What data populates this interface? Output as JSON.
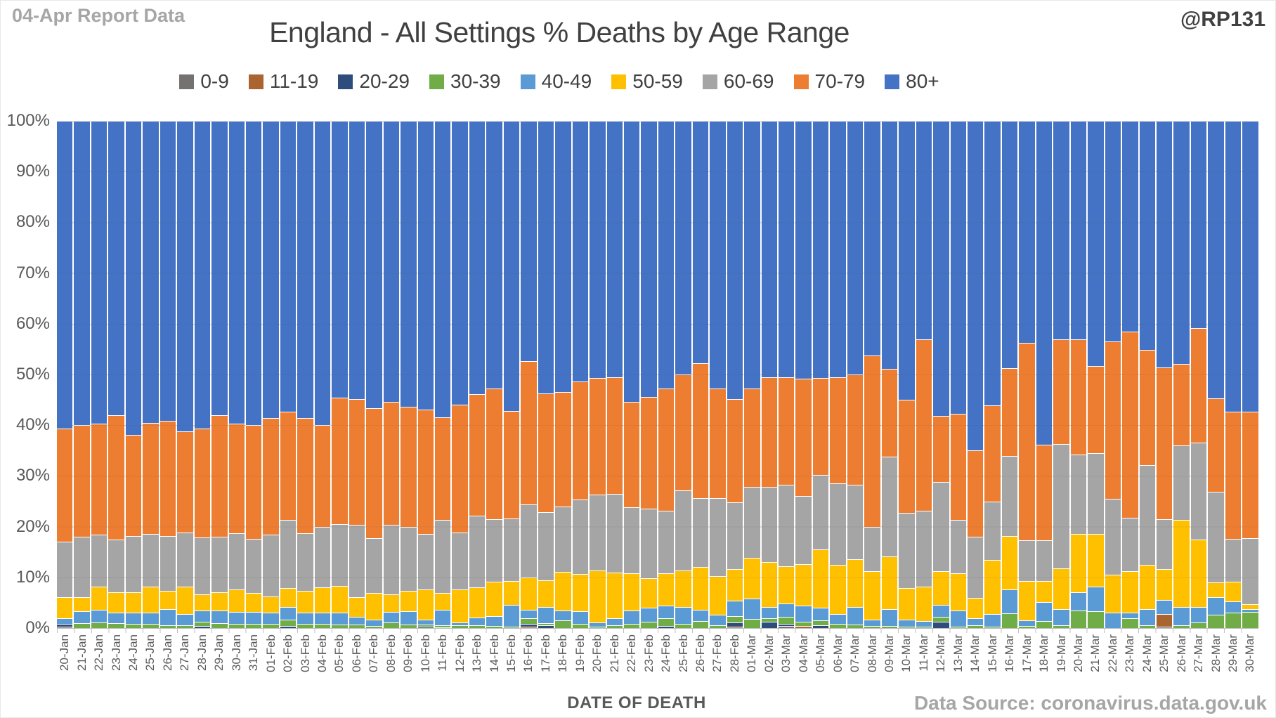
{
  "header": {
    "report_label": "04-Apr Report Data",
    "handle": "@RP131",
    "title": "England - All Settings % Deaths by Age Range"
  },
  "footer": {
    "x_axis_title": "DATE OF DEATH",
    "source": "Data Source: coronavirus.data.gov.uk"
  },
  "chart_data": {
    "type": "bar",
    "stacked": true,
    "normalized_to_percent": true,
    "title": "England - All Settings % Deaths by Age Range",
    "xlabel": "DATE OF DEATH",
    "ylabel": "",
    "ylim": [
      0,
      100
    ],
    "grid": true,
    "legend_position": "top",
    "yticks": [
      "0%",
      "10%",
      "20%",
      "30%",
      "40%",
      "50%",
      "60%",
      "70%",
      "80%",
      "90%",
      "100%"
    ],
    "categories": [
      "20-Jan",
      "21-Jan",
      "22-Jan",
      "23-Jan",
      "24-Jan",
      "25-Jan",
      "26-Jan",
      "27-Jan",
      "28-Jan",
      "29-Jan",
      "30-Jan",
      "31-Jan",
      "01-Feb",
      "02-Feb",
      "03-Feb",
      "04-Feb",
      "05-Feb",
      "06-Feb",
      "07-Feb",
      "08-Feb",
      "09-Feb",
      "10-Feb",
      "11-Feb",
      "12-Feb",
      "13-Feb",
      "14-Feb",
      "15-Feb",
      "16-Feb",
      "17-Feb",
      "18-Feb",
      "19-Feb",
      "20-Feb",
      "21-Feb",
      "22-Feb",
      "23-Feb",
      "24-Feb",
      "25-Feb",
      "26-Feb",
      "27-Feb",
      "28-Feb",
      "01-Mar",
      "02-Mar",
      "03-Mar",
      "04-Mar",
      "05-Mar",
      "06-Mar",
      "07-Mar",
      "08-Mar",
      "09-Mar",
      "10-Mar",
      "11-Mar",
      "12-Mar",
      "13-Mar",
      "14-Mar",
      "15-Mar",
      "16-Mar",
      "17-Mar",
      "18-Mar",
      "19-Mar",
      "20-Mar",
      "21-Mar",
      "22-Mar",
      "23-Mar",
      "24-Mar",
      "25-Mar",
      "26-Mar",
      "27-Mar",
      "28-Mar",
      "29-Mar",
      "30-Mar"
    ],
    "series": [
      {
        "name": "0-9",
        "color": "#767171",
        "values": [
          0.3,
          0,
          0,
          0,
          0,
          0,
          0,
          0,
          0,
          0,
          0,
          0,
          0,
          0,
          0,
          0,
          0,
          0,
          0,
          0,
          0,
          0,
          0.2,
          0,
          0,
          0,
          0,
          0,
          0,
          0,
          0,
          0,
          0,
          0,
          0,
          0,
          0,
          0,
          0,
          0,
          0,
          0,
          0.4,
          0,
          0,
          0,
          0,
          0,
          0,
          0,
          0,
          0,
          0,
          0,
          0,
          0,
          0,
          0,
          0,
          0,
          0,
          0,
          0,
          0,
          0.3,
          0,
          0,
          0,
          0,
          0
        ]
      },
      {
        "name": "11-19",
        "color": "#a9642f",
        "values": [
          0,
          0,
          0,
          0,
          0,
          0,
          0,
          0,
          0,
          0,
          0,
          0,
          0,
          0,
          0,
          0,
          0,
          0,
          0,
          0,
          0,
          0,
          0,
          0,
          0,
          0,
          0,
          0.3,
          0,
          0,
          0,
          0,
          0,
          0,
          0,
          0,
          0,
          0,
          0,
          0.3,
          0,
          0,
          0,
          0.4,
          0,
          0,
          0,
          0,
          0,
          0,
          0,
          0,
          0,
          0,
          0,
          0,
          0,
          0,
          0,
          0,
          0,
          0,
          0,
          0,
          2.5,
          0,
          0,
          0,
          0,
          0
        ]
      },
      {
        "name": "20-29",
        "color": "#2e4d7d",
        "values": [
          0.5,
          0,
          0,
          0,
          0,
          0,
          0,
          0,
          0.4,
          0,
          0,
          0,
          0,
          0.4,
          0,
          0,
          0,
          0,
          0,
          0,
          0,
          0.3,
          0,
          0,
          0,
          0,
          0,
          0.6,
          0.5,
          0,
          0,
          0,
          0,
          0,
          0,
          0.4,
          0,
          0,
          0,
          0.8,
          0,
          1.2,
          0.4,
          0,
          0.5,
          0,
          0,
          0,
          0,
          0,
          0,
          1.2,
          0,
          0,
          0,
          0,
          0,
          0,
          0,
          0,
          0,
          0,
          0,
          0,
          0,
          0,
          0,
          0,
          0,
          0
        ]
      },
      {
        "name": "30-39",
        "color": "#70ad47",
        "values": [
          0,
          1.0,
          1.1,
          1.0,
          0.9,
          0.8,
          0.6,
          0.6,
          0.8,
          1.0,
          0.9,
          0.8,
          0.8,
          1.3,
          0.9,
          0.8,
          0.7,
          0.7,
          0.4,
          1.1,
          0.7,
          0.4,
          0.4,
          0.5,
          0.5,
          0.4,
          0.3,
          1.0,
          0.5,
          1.5,
          0.9,
          0.3,
          0.5,
          0.8,
          1.2,
          1.6,
          0.8,
          1.4,
          0.6,
          1.2,
          1.8,
          0.8,
          1.4,
          0.8,
          1.0,
          0.8,
          0.7,
          0.4,
          0.4,
          0.3,
          0.3,
          1.0,
          0.3,
          0.5,
          0.3,
          2.9,
          0.4,
          1.4,
          0.5,
          3.5,
          3.3,
          0,
          2.0,
          0.5,
          0,
          0.5,
          1.1,
          2.6,
          3.0,
          3.2
        ]
      },
      {
        "name": "40-49",
        "color": "#5b9bd5",
        "values": [
          1.2,
          2.3,
          2.5,
          2.0,
          2.1,
          2.3,
          3.2,
          2.2,
          2.3,
          2.5,
          2.3,
          2.4,
          2.2,
          2.5,
          2.2,
          2.3,
          2.4,
          1.5,
          1.3,
          2.1,
          2.6,
          0.9,
          3.0,
          0.6,
          1.6,
          2.0,
          4.3,
          1.7,
          3.1,
          2.0,
          2.4,
          0.8,
          1.5,
          2.6,
          2.8,
          2.4,
          3.4,
          2.2,
          2.0,
          3.1,
          4.0,
          2.2,
          2.6,
          3.2,
          2.5,
          2.0,
          3.5,
          1.2,
          3.3,
          1.3,
          1.1,
          2.4,
          3.2,
          1.5,
          2.5,
          4.7,
          1.1,
          3.7,
          3.2,
          3.6,
          4.9,
          3.0,
          1.0,
          3.3,
          2.8,
          3.7,
          3.1,
          3.5,
          2.2,
          0.5
        ]
      },
      {
        "name": "50-59",
        "color": "#ffc000",
        "values": [
          4.1,
          2.8,
          4.6,
          4.0,
          4.0,
          5.1,
          3.6,
          5.4,
          3.2,
          3.6,
          4.4,
          3.8,
          3.2,
          3.7,
          4.3,
          4.9,
          5.2,
          3.9,
          5.2,
          3.4,
          4.0,
          6.0,
          3.3,
          6.5,
          5.9,
          6.7,
          4.7,
          6.4,
          5.3,
          7.6,
          7.4,
          10.2,
          9.0,
          7.4,
          5.8,
          6.4,
          7.2,
          8.4,
          7.6,
          6.2,
          8.0,
          8.8,
          7.4,
          8.2,
          11.5,
          9.7,
          9.4,
          9.6,
          10.5,
          6.3,
          6.8,
          6.6,
          7.3,
          4.0,
          10.6,
          10.6,
          7.8,
          4.2,
          8.1,
          11.5,
          10.4,
          7.5,
          8.2,
          8.7,
          6.0,
          17.2,
          13.2,
          2.9,
          4.0,
          1.0
        ]
      },
      {
        "name": "60-69",
        "color": "#a5a5a5",
        "values": [
          10.9,
          11.9,
          10.2,
          10.4,
          11.2,
          10.4,
          10.8,
          10.7,
          11.2,
          10.9,
          11.1,
          10.6,
          12.2,
          13.4,
          11.3,
          12.0,
          12.2,
          14.3,
          10.9,
          13.8,
          12.6,
          11.0,
          14.4,
          11.2,
          14.1,
          12.4,
          12.3,
          14.4,
          13.5,
          12.9,
          14.7,
          15.0,
          15.5,
          13.0,
          13.8,
          12.4,
          15.8,
          13.6,
          15.4,
          13.2,
          14.0,
          14.8,
          16.0,
          13.4,
          14.5,
          16.0,
          14.7,
          8.7,
          19.6,
          14.8,
          14.9,
          17.6,
          10.5,
          12.0,
          11.5,
          15.8,
          8.0,
          8.0,
          24.5,
          15.6,
          15.9,
          15.0,
          10.5,
          19.6,
          9.9,
          14.6,
          19.2,
          17.9,
          8.4,
          13.1
        ]
      },
      {
        "name": "70-79",
        "color": "#ed7d31",
        "values": [
          22.4,
          22.1,
          21.9,
          24.6,
          19.9,
          21.8,
          22.6,
          19.9,
          21.5,
          24.0,
          21.6,
          22.5,
          23.0,
          21.4,
          22.7,
          20.1,
          24.9,
          24.8,
          25.5,
          24.2,
          23.7,
          24.5,
          20.2,
          25.3,
          24.0,
          25.8,
          21.2,
          28.3,
          23.4,
          22.6,
          23.2,
          23.0,
          23.0,
          20.8,
          22.0,
          24.0,
          22.8,
          26.6,
          21.6,
          20.4,
          19.4,
          21.6,
          21.2,
          23.2,
          19.0,
          21.0,
          21.7,
          33.8,
          17.3,
          22.3,
          33.8,
          13.0,
          21.0,
          17.1,
          19.0,
          17.2,
          39.0,
          18.8,
          20.7,
          22.8,
          17.2,
          31.0,
          36.8,
          22.8,
          29.9,
          16.1,
          22.5,
          18.4,
          25.1,
          24.8
        ]
      },
      {
        "name": "80+",
        "color": "#4472c4",
        "values": [
          60.6,
          59.9,
          59.7,
          58.0,
          61.9,
          59.6,
          59.2,
          61.2,
          60.6,
          58.0,
          59.7,
          59.9,
          58.6,
          57.3,
          58.6,
          59.9,
          54.6,
          54.8,
          56.7,
          55.4,
          56.4,
          56.9,
          58.5,
          55.9,
          53.9,
          52.7,
          57.2,
          47.3,
          53.7,
          53.4,
          51.4,
          50.7,
          50.5,
          55.4,
          54.4,
          52.8,
          50.0,
          47.8,
          52.8,
          54.8,
          52.8,
          50.6,
          50.6,
          50.8,
          50.5,
          50.5,
          50.0,
          46.3,
          48.9,
          55.0,
          43.1,
          58.2,
          57.7,
          64.9,
          56.1,
          48.8,
          43.7,
          63.9,
          43.0,
          43.0,
          48.3,
          43.5,
          41.5,
          45.1,
          48.6,
          47.9,
          40.9,
          54.7,
          57.3,
          57.4
        ]
      }
    ]
  },
  "style_colors": {
    "gridline": "#d9d9d9",
    "axis_line": "#bfbfbf",
    "muted_text": "#a6a6a6",
    "axis_text": "#595959",
    "title_text": "#404040"
  }
}
